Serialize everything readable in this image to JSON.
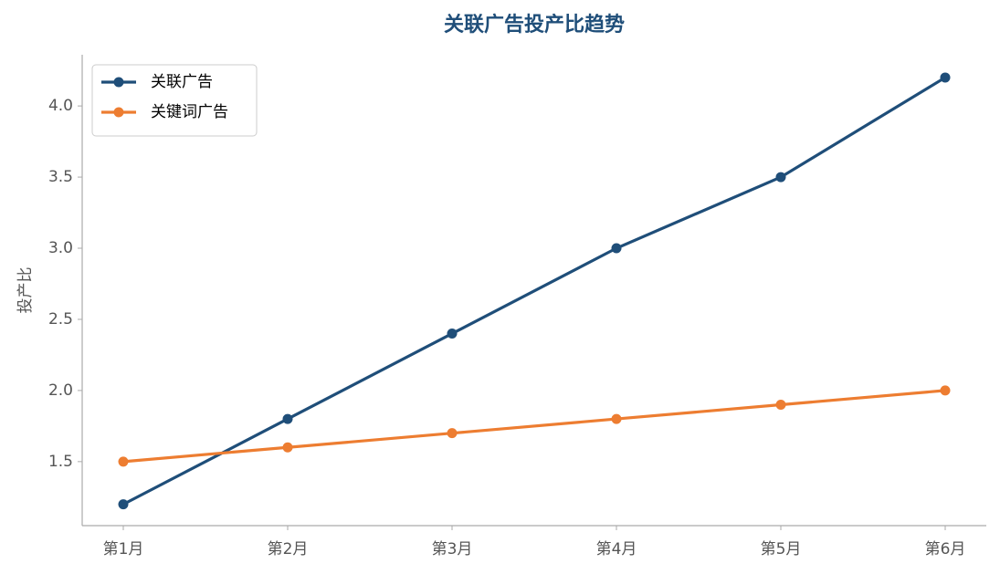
{
  "chart_data": {
    "type": "line",
    "title": "关联广告投产比趋势",
    "y_label": "投产比",
    "categories": [
      "第1月",
      "第2月",
      "第3月",
      "第4月",
      "第5月",
      "第6月"
    ],
    "series": [
      {
        "name": "关联广告",
        "color": "#1f4e79",
        "values": [
          1.2,
          1.8,
          2.4,
          3.0,
          3.5,
          4.2
        ]
      },
      {
        "name": "关键词广告",
        "color": "#ed7d31",
        "values": [
          1.5,
          1.6,
          1.7,
          1.8,
          1.9,
          2.0
        ]
      }
    ],
    "ylim": [
      1.05,
      4.36
    ],
    "yticks": [
      1.5,
      {
        "value": 2.0,
        "label": "2.0"
      },
      2.5,
      {
        "value": 3.0,
        "label": "3.0"
      },
      3.5,
      {
        "value": 4.0,
        "label": "4.0"
      }
    ],
    "legend": "upper left",
    "grid": false
  }
}
